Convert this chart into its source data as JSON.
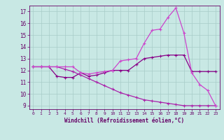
{
  "xlabel": "Windchill (Refroidissement éolien,°C)",
  "bg_color": "#c8e8e4",
  "grid_color": "#a8ccc8",
  "line_color1": "#cc44cc",
  "line_color2": "#880088",
  "line_color3": "#aa22aa",
  "xlim": [
    -0.5,
    23.5
  ],
  "ylim": [
    8.7,
    17.5
  ],
  "yticks": [
    9,
    10,
    11,
    12,
    13,
    14,
    15,
    16,
    17
  ],
  "xticks": [
    0,
    1,
    2,
    3,
    4,
    5,
    6,
    7,
    8,
    9,
    10,
    11,
    12,
    13,
    14,
    15,
    16,
    17,
    18,
    19,
    20,
    21,
    22,
    23
  ],
  "series1_x": [
    0,
    1,
    2,
    3,
    4,
    5,
    6,
    7,
    8,
    9,
    10,
    11,
    12,
    13,
    14,
    15,
    16,
    17,
    18,
    19,
    20,
    21,
    22,
    23
  ],
  "series1_y": [
    12.3,
    12.3,
    12.3,
    12.3,
    12.3,
    12.3,
    11.8,
    11.7,
    11.8,
    11.9,
    12.0,
    12.8,
    12.9,
    13.0,
    14.3,
    15.4,
    15.5,
    16.5,
    17.3,
    15.2,
    11.8,
    10.8,
    10.3,
    9.0
  ],
  "series2_x": [
    0,
    1,
    2,
    3,
    4,
    5,
    6,
    7,
    8,
    9,
    10,
    11,
    12,
    13,
    14,
    15,
    16,
    17,
    18,
    19,
    20,
    21,
    22,
    23
  ],
  "series2_y": [
    12.3,
    12.3,
    12.3,
    11.5,
    11.4,
    11.4,
    11.8,
    11.5,
    11.6,
    11.8,
    12.0,
    12.0,
    12.0,
    12.5,
    13.0,
    13.1,
    13.2,
    13.3,
    13.3,
    13.3,
    11.9,
    11.9,
    11.9,
    11.9
  ],
  "series3_x": [
    0,
    1,
    2,
    3,
    4,
    5,
    6,
    7,
    8,
    9,
    10,
    11,
    12,
    13,
    14,
    15,
    16,
    17,
    18,
    19,
    20,
    21,
    22,
    23
  ],
  "series3_y": [
    12.3,
    12.3,
    12.3,
    12.3,
    12.1,
    11.9,
    11.6,
    11.3,
    11.0,
    10.7,
    10.4,
    10.1,
    9.9,
    9.7,
    9.5,
    9.4,
    9.3,
    9.2,
    9.1,
    9.0,
    9.0,
    9.0,
    9.0,
    9.0
  ]
}
